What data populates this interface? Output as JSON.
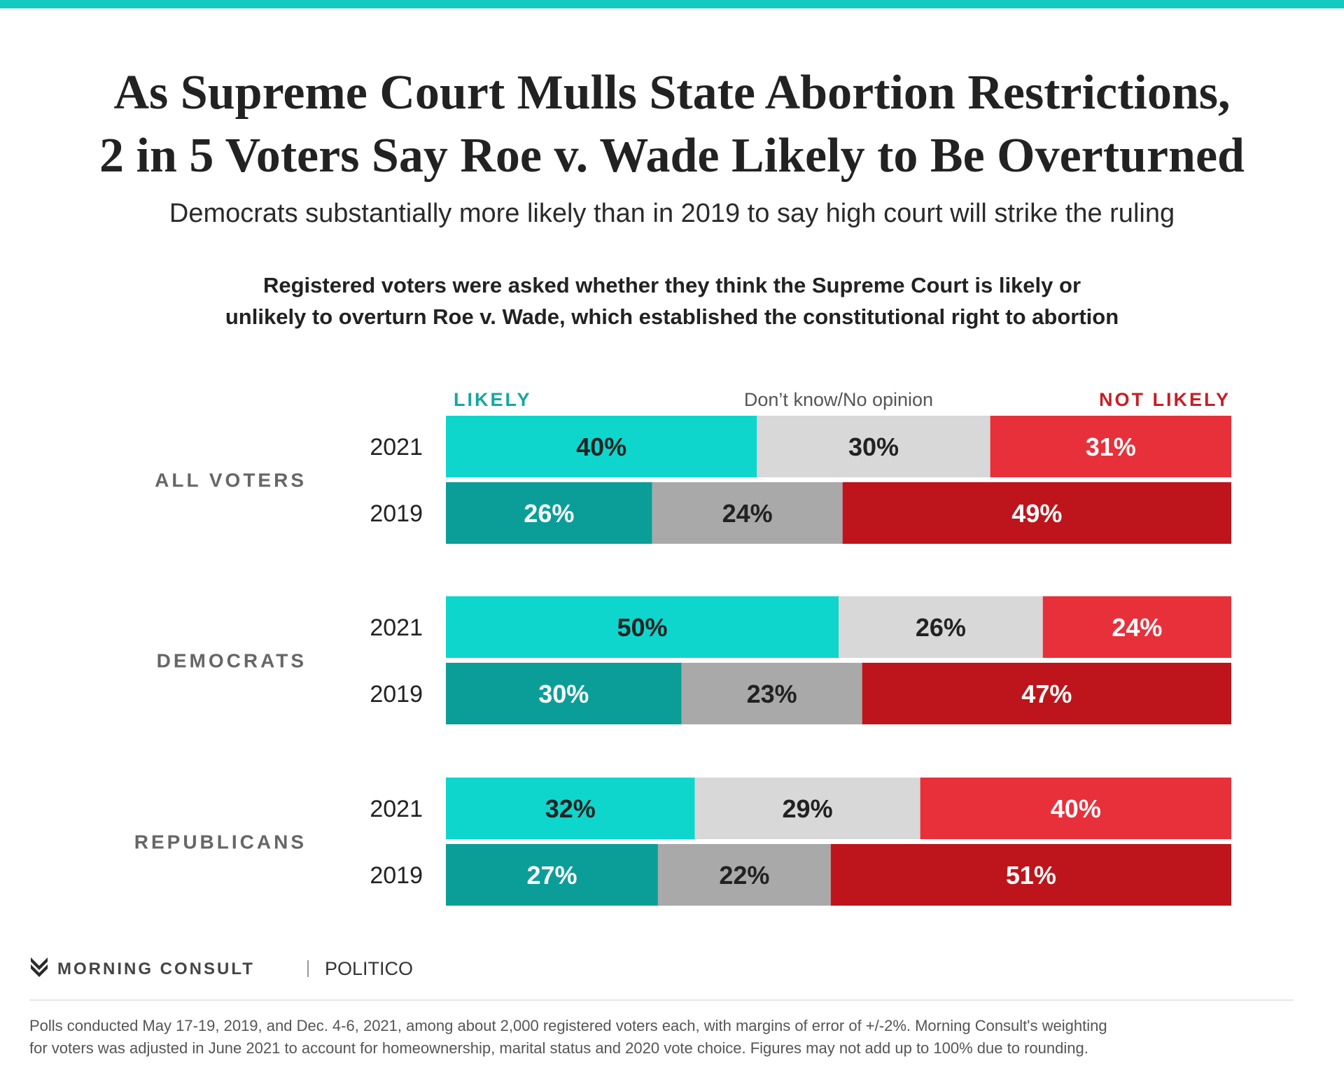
{
  "title_line1": "As Supreme Court Mulls State Abortion Restrictions,",
  "title_line2": "2 in 5 Voters Say Roe v. Wade Likely to Be Overturned",
  "subtitle": "Democrats substantially more likely than in 2019 to say high court will strike the ruling",
  "question_line1": "Registered voters were asked whether they think the Supreme Court is likely or",
  "question_line2": "unlikely to overturn Roe v. Wade, which established the constitutional right to abortion",
  "logo": {
    "brand": "MORNING CONSULT",
    "partner": "POLITICO",
    "icon": "morning-consult-m-icon"
  },
  "footnote_line1": "Polls conducted May 17-19, 2019, and Dec. 4-6, 2021, among about 2,000 registered voters each, with margins of error of +/-2%. Morning Consult's weighting",
  "footnote_line2": "for voters was adjusted in June 2021 to account for homeownership, marital status and 2020 vote choice. Figures may not add up to 100% due to rounding.",
  "chart_data": {
    "type": "bar",
    "orientation": "horizontal",
    "stacked": true,
    "legend_position": "top",
    "groups": [
      "ALL VOTERS",
      "DEMOCRATS",
      "REPUBLICANS"
    ],
    "years": [
      "2021",
      "2019"
    ],
    "series": [
      {
        "name": "LIKELY",
        "colors": {
          "2021": "#0fd6cd",
          "2019": "#0b9e98"
        },
        "label_colors": {
          "2021": "#222222",
          "2019": "#ffffff"
        }
      },
      {
        "name": "Don’t know/No opinion",
        "colors": {
          "2021": "#d8d8d8",
          "2019": "#a9a9a9"
        },
        "label_colors": {
          "2021": "#222222",
          "2019": "#222222"
        }
      },
      {
        "name": "NOT LIKELY",
        "colors": {
          "2021": "#e8303a",
          "2019": "#bd151b"
        },
        "label_colors": {
          "2021": "#ffffff",
          "2019": "#ffffff"
        }
      }
    ],
    "legend_colors": [
      "#12a8a0",
      "#555555",
      "#c81d25"
    ],
    "rows": [
      {
        "group": "ALL VOTERS",
        "year": "2021",
        "values": [
          40,
          30,
          31
        ],
        "labels": [
          "40%",
          "30%",
          "31%"
        ]
      },
      {
        "group": "ALL VOTERS",
        "year": "2019",
        "values": [
          26,
          24,
          49
        ],
        "labels": [
          "26%",
          "24%",
          "49%"
        ]
      },
      {
        "group": "DEMOCRATS",
        "year": "2021",
        "values": [
          50,
          26,
          24
        ],
        "labels": [
          "50%",
          "26%",
          "24%"
        ]
      },
      {
        "group": "DEMOCRATS",
        "year": "2019",
        "values": [
          30,
          23,
          47
        ],
        "labels": [
          "30%",
          "23%",
          "47%"
        ]
      },
      {
        "group": "REPUBLICANS",
        "year": "2021",
        "values": [
          32,
          29,
          40
        ],
        "labels": [
          "32%",
          "29%",
          "40%"
        ]
      },
      {
        "group": "REPUBLICANS",
        "year": "2019",
        "values": [
          27,
          22,
          51
        ],
        "labels": [
          "27%",
          "22%",
          "51%"
        ]
      }
    ]
  }
}
